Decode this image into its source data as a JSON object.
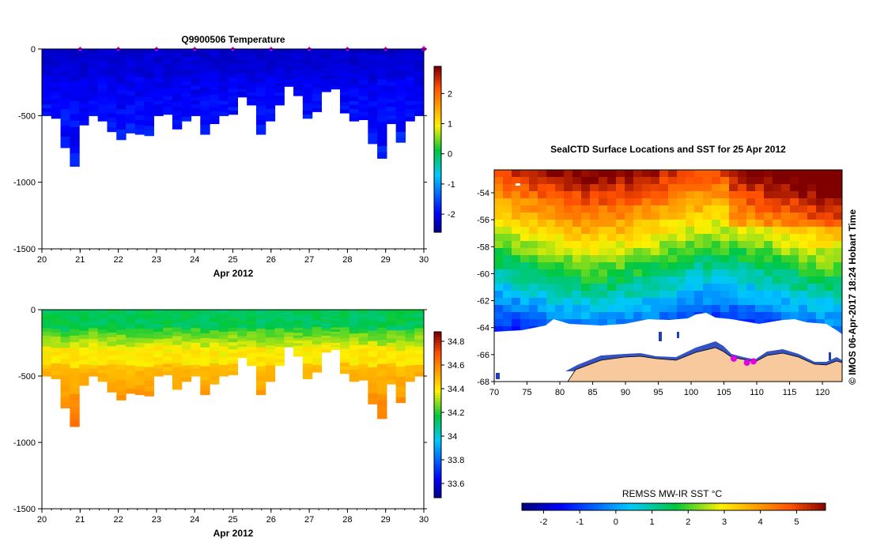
{
  "chart_data": [
    {
      "type": "heatmap",
      "title": "Q9900506  Temperature",
      "xlabel": "Apr 2012",
      "ylabel": "",
      "x_ticks": [
        "20",
        "21",
        "22",
        "23",
        "24",
        "25",
        "26",
        "27",
        "28",
        "29",
        "30"
      ],
      "y_ticks": [
        "0",
        "-500",
        "-1000",
        "-1500"
      ],
      "xlim": [
        20,
        30
      ],
      "ylim": [
        -1500,
        0
      ],
      "colorbar": {
        "range": [
          -2.6,
          2.9
        ],
        "ticks": [
          "2",
          "1",
          "0",
          "-1",
          "-2"
        ],
        "tick_values": [
          2,
          1,
          0,
          -1,
          -2
        ]
      },
      "profile_markers_day": [
        21,
        22,
        23,
        24,
        25,
        26,
        27,
        28,
        29,
        30
      ],
      "profiles": [
        {
          "day": 20.0,
          "depth": 500
        },
        {
          "day": 20.25,
          "depth": 520
        },
        {
          "day": 20.45,
          "depth": 740
        },
        {
          "day": 20.7,
          "depth": 880
        },
        {
          "day": 20.95,
          "depth": 570
        },
        {
          "day": 21.2,
          "depth": 500
        },
        {
          "day": 21.45,
          "depth": 540
        },
        {
          "day": 21.7,
          "depth": 620
        },
        {
          "day": 21.9,
          "depth": 680
        },
        {
          "day": 22.2,
          "depth": 630
        },
        {
          "day": 22.45,
          "depth": 640
        },
        {
          "day": 22.7,
          "depth": 650
        },
        {
          "day": 22.95,
          "depth": 500
        },
        {
          "day": 23.2,
          "depth": 490
        },
        {
          "day": 23.45,
          "depth": 600
        },
        {
          "day": 23.7,
          "depth": 540
        },
        {
          "day": 23.95,
          "depth": 500
        },
        {
          "day": 24.2,
          "depth": 640
        },
        {
          "day": 24.45,
          "depth": 560
        },
        {
          "day": 24.7,
          "depth": 500
        },
        {
          "day": 24.95,
          "depth": 490
        },
        {
          "day": 25.2,
          "depth": 360
        },
        {
          "day": 25.45,
          "depth": 420
        },
        {
          "day": 25.7,
          "depth": 640
        },
        {
          "day": 25.9,
          "depth": 540
        },
        {
          "day": 26.1,
          "depth": 420
        },
        {
          "day": 26.35,
          "depth": 280
        },
        {
          "day": 26.6,
          "depth": 350
        },
        {
          "day": 26.85,
          "depth": 520
        },
        {
          "day": 27.1,
          "depth": 470
        },
        {
          "day": 27.35,
          "depth": 320
        },
        {
          "day": 27.6,
          "depth": 300
        },
        {
          "day": 27.85,
          "depth": 480
        },
        {
          "day": 28.1,
          "depth": 540
        },
        {
          "day": 28.35,
          "depth": 530
        },
        {
          "day": 28.6,
          "depth": 710
        },
        {
          "day": 28.85,
          "depth": 820
        },
        {
          "day": 29.1,
          "depth": 560
        },
        {
          "day": 29.35,
          "depth": 700
        },
        {
          "day": 29.6,
          "depth": 540
        },
        {
          "day": 29.85,
          "depth": 500
        }
      ]
    },
    {
      "type": "heatmap",
      "title": "",
      "xlabel": "Apr 2012",
      "ylabel": "",
      "x_ticks": [
        "20",
        "21",
        "22",
        "23",
        "24",
        "25",
        "26",
        "27",
        "28",
        "29",
        "30"
      ],
      "y_ticks": [
        "0",
        "-500",
        "-1000",
        "-1500"
      ],
      "xlim": [
        20,
        30
      ],
      "ylim": [
        -1500,
        0
      ],
      "colorbar": {
        "range": [
          33.48,
          34.88
        ],
        "ticks": [
          "34.8",
          "34.6",
          "34.4",
          "34.2",
          "34",
          "33.8",
          "33.6"
        ],
        "tick_values": [
          34.8,
          34.6,
          34.4,
          34.2,
          34.0,
          33.8,
          33.6
        ]
      },
      "profiles": "same sections as temperature (salinity)"
    },
    {
      "type": "heatmap",
      "title": "SealCTD Surface Locations and SST for 25 Apr 2012",
      "xlabel": "",
      "ylabel": "",
      "x_ticks": [
        "70",
        "75",
        "80",
        "85",
        "90",
        "95",
        "100",
        "105",
        "110",
        "115",
        "120"
      ],
      "y_ticks": [
        "-54",
        "-56",
        "-58",
        "-60",
        "-62",
        "-64",
        "-66",
        "-68"
      ],
      "xlim": [
        70,
        123
      ],
      "ylim": [
        -68,
        -52.3
      ],
      "colorbar": {
        "label": "REMSS MW-IR SST °C",
        "range": [
          -2.6,
          5.8
        ],
        "ticks": [
          "-2",
          "-1",
          "0",
          "1",
          "2",
          "3",
          "4",
          "5"
        ],
        "tick_values": [
          -2,
          -1,
          0,
          1,
          2,
          3,
          4,
          5
        ]
      },
      "surface_locations": [
        {
          "lon": 106.5,
          "lat": -66.3
        },
        {
          "lon": 108.5,
          "lat": -66.6
        },
        {
          "lon": 109.5,
          "lat": -66.5
        }
      ],
      "watermark": "© IMOS 06-Apr-2017 18:24 Hobart Time"
    }
  ]
}
